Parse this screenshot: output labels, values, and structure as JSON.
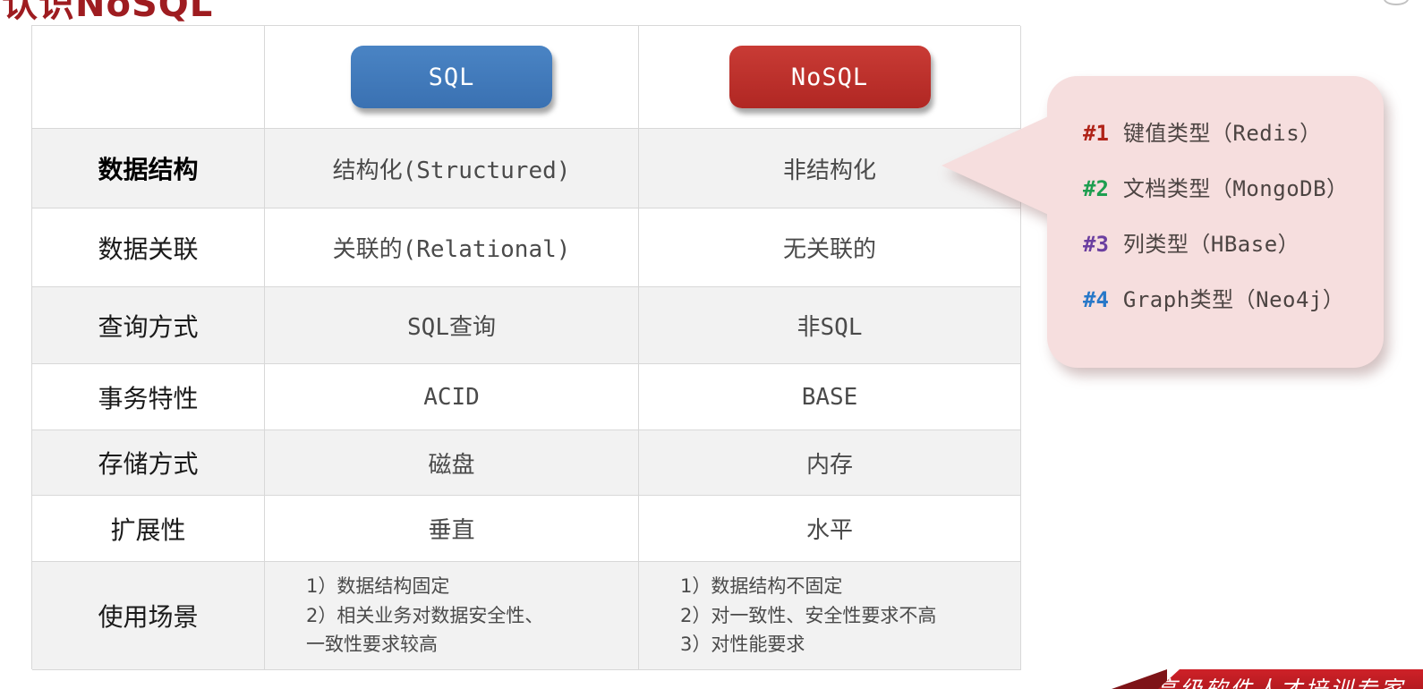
{
  "page": {
    "title": "认识NoSQL",
    "watermark": "高级软件人才培训专家",
    "colors": {
      "title": "#9e1c20",
      "sql_button": "#3b76b8",
      "nosql_button": "#bf2e2a",
      "callout_bg": "#f6dede",
      "row_shade": "#f2f2f2",
      "border": "#d8d8d8",
      "ribbon": "#c41e24"
    }
  },
  "table": {
    "headers": [
      {
        "label": "SQL",
        "color": "#3b76b8"
      },
      {
        "label": "NoSQL",
        "color": "#bf2e2a"
      }
    ],
    "rows": [
      {
        "label": "数据结构",
        "sql": "结构化(Structured)",
        "nosql": "非结构化"
      },
      {
        "label": "数据关联",
        "sql": "关联的(Relational)",
        "nosql": "无关联的"
      },
      {
        "label": "查询方式",
        "sql": "SQL查询",
        "nosql": "非SQL"
      },
      {
        "label": "事务特性",
        "sql": "ACID",
        "nosql": "BASE"
      },
      {
        "label": "存储方式",
        "sql": "磁盘",
        "nosql": "内存"
      },
      {
        "label": "扩展性",
        "sql": "垂直",
        "nosql": "水平"
      },
      {
        "label": "使用场景",
        "sql_lines": [
          "1）数据结构固定",
          "2）相关业务对数据安全性、",
          "一致性要求较高"
        ],
        "nosql_lines": [
          "1）数据结构不固定",
          "2）对一致性、安全性要求不高",
          "3）对性能要求"
        ]
      }
    ]
  },
  "callout": {
    "items": [
      {
        "num": "#1",
        "color": "#b02318",
        "text": "键值类型（Redis）"
      },
      {
        "num": "#2",
        "color": "#1e9e50",
        "text": "文档类型（MongoDB）"
      },
      {
        "num": "#3",
        "color": "#6b3fa0",
        "text": "列类型（HBase）"
      },
      {
        "num": "#4",
        "color": "#2878c8",
        "text": "Graph类型（Neo4j）"
      }
    ]
  }
}
